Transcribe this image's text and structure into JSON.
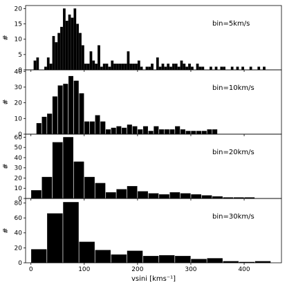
{
  "chart_data": [
    {
      "type": "bar",
      "annotation": "bin=5km/s",
      "bin_width": 5,
      "ylabel": "#",
      "ylim": [
        0,
        21
      ],
      "yticks": [
        0,
        5,
        10,
        15,
        20
      ],
      "values": [
        [
          7.5,
          3
        ],
        [
          12.5,
          4
        ],
        [
          27.5,
          1
        ],
        [
          32.5,
          4
        ],
        [
          37.5,
          2
        ],
        [
          42.5,
          11
        ],
        [
          47.5,
          9
        ],
        [
          52.5,
          12
        ],
        [
          57.5,
          14
        ],
        [
          62.5,
          20
        ],
        [
          67.5,
          16
        ],
        [
          72.5,
          18
        ],
        [
          77.5,
          17
        ],
        [
          82.5,
          20
        ],
        [
          87.5,
          15
        ],
        [
          92.5,
          12
        ],
        [
          97.5,
          8
        ],
        [
          102.5,
          2
        ],
        [
          107.5,
          2
        ],
        [
          112.5,
          6
        ],
        [
          117.5,
          3
        ],
        [
          122.5,
          2
        ],
        [
          127.5,
          8
        ],
        [
          132.5,
          1
        ],
        [
          137.5,
          2
        ],
        [
          142.5,
          2
        ],
        [
          147.5,
          1
        ],
        [
          152.5,
          3
        ],
        [
          157.5,
          2
        ],
        [
          162.5,
          2
        ],
        [
          167.5,
          2
        ],
        [
          172.5,
          2
        ],
        [
          177.5,
          2
        ],
        [
          182.5,
          6
        ],
        [
          187.5,
          2
        ],
        [
          192.5,
          2
        ],
        [
          197.5,
          2
        ],
        [
          202.5,
          3
        ],
        [
          207.5,
          1
        ],
        [
          217.5,
          1
        ],
        [
          222.5,
          1
        ],
        [
          227.5,
          2
        ],
        [
          237.5,
          4
        ],
        [
          242.5,
          1
        ],
        [
          247.5,
          2
        ],
        [
          252.5,
          1
        ],
        [
          257.5,
          2
        ],
        [
          262.5,
          1
        ],
        [
          267.5,
          2
        ],
        [
          272.5,
          2
        ],
        [
          277.5,
          1
        ],
        [
          282.5,
          3
        ],
        [
          287.5,
          2
        ],
        [
          292.5,
          1
        ],
        [
          297.5,
          2
        ],
        [
          302.5,
          1
        ],
        [
          312.5,
          2
        ],
        [
          317.5,
          1
        ],
        [
          322.5,
          1
        ],
        [
          337.5,
          1
        ],
        [
          347.5,
          1
        ],
        [
          357.5,
          1
        ],
        [
          362.5,
          1
        ],
        [
          377.5,
          1
        ],
        [
          387.5,
          1
        ],
        [
          397.5,
          1
        ],
        [
          412.5,
          1
        ],
        [
          427.5,
          1
        ],
        [
          437.5,
          1
        ]
      ]
    },
    {
      "type": "bar",
      "annotation": "bin=10km/s",
      "bin_width": 10,
      "ylabel": "#",
      "ylim": [
        0,
        41
      ],
      "yticks": [
        0,
        10,
        20,
        30,
        40
      ],
      "values": [
        [
          15,
          7
        ],
        [
          25,
          11
        ],
        [
          35,
          13
        ],
        [
          45,
          24
        ],
        [
          55,
          31
        ],
        [
          65,
          32
        ],
        [
          75,
          37
        ],
        [
          85,
          34
        ],
        [
          95,
          26
        ],
        [
          105,
          8
        ],
        [
          115,
          8
        ],
        [
          125,
          12
        ],
        [
          135,
          8
        ],
        [
          145,
          3
        ],
        [
          155,
          4
        ],
        [
          165,
          5
        ],
        [
          175,
          4
        ],
        [
          185,
          6
        ],
        [
          195,
          5
        ],
        [
          205,
          3
        ],
        [
          215,
          5
        ],
        [
          225,
          2
        ],
        [
          235,
          5
        ],
        [
          245,
          3
        ],
        [
          255,
          3
        ],
        [
          265,
          3
        ],
        [
          275,
          5
        ],
        [
          285,
          3
        ],
        [
          295,
          2
        ],
        [
          305,
          2
        ],
        [
          315,
          2
        ],
        [
          325,
          2
        ],
        [
          335,
          3
        ],
        [
          345,
          3
        ]
      ]
    },
    {
      "type": "bar",
      "annotation": "bin=20km/s",
      "bin_width": 20,
      "ylabel": "#",
      "ylim": [
        0,
        63
      ],
      "yticks": [
        0,
        10,
        20,
        30,
        40,
        50,
        60
      ],
      "values": [
        [
          10,
          8
        ],
        [
          30,
          21
        ],
        [
          50,
          55
        ],
        [
          70,
          60
        ],
        [
          90,
          36
        ],
        [
          110,
          21
        ],
        [
          130,
          15
        ],
        [
          150,
          6
        ],
        [
          170,
          9
        ],
        [
          190,
          12
        ],
        [
          210,
          7
        ],
        [
          230,
          5
        ],
        [
          250,
          4
        ],
        [
          270,
          6
        ],
        [
          290,
          5
        ],
        [
          310,
          4
        ],
        [
          330,
          3
        ],
        [
          350,
          2
        ],
        [
          370,
          1
        ],
        [
          390,
          1
        ],
        [
          410,
          1
        ]
      ]
    },
    {
      "type": "bar",
      "annotation": "bin=30km/s",
      "bin_width": 30,
      "ylabel": "#",
      "ylim": [
        0,
        86
      ],
      "yticks": [
        0,
        20,
        40,
        60,
        80
      ],
      "values": [
        [
          15,
          18
        ],
        [
          45,
          66
        ],
        [
          75,
          81
        ],
        [
          105,
          28
        ],
        [
          135,
          17
        ],
        [
          165,
          11
        ],
        [
          195,
          16
        ],
        [
          225,
          9
        ],
        [
          255,
          10
        ],
        [
          285,
          9
        ],
        [
          315,
          5
        ],
        [
          345,
          6
        ],
        [
          375,
          2
        ],
        [
          405,
          1
        ],
        [
          435,
          2
        ]
      ]
    }
  ],
  "xaxis": {
    "label": "vsini [kms⁻¹]",
    "xlim": [
      -10,
      470
    ],
    "ticks": [
      0,
      100,
      200,
      300,
      400
    ]
  }
}
